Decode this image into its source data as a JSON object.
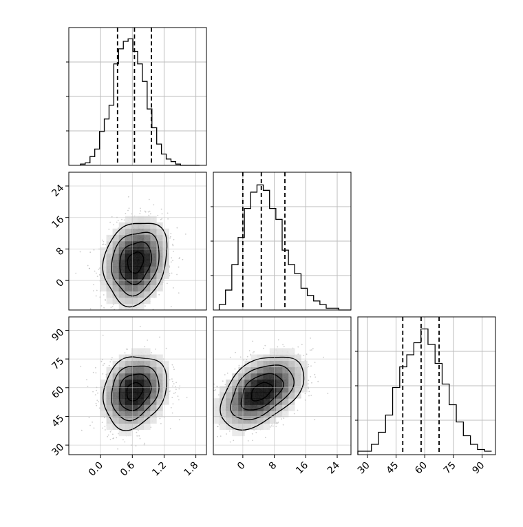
{
  "chart_data": {
    "type": "corner",
    "title": "",
    "grid": true,
    "variables": [
      {
        "ticks": [
          "0.0",
          "0.6",
          "1.2",
          "1.8"
        ],
        "tick_values": [
          0.0,
          0.6,
          1.2,
          1.8
        ],
        "range": [
          -0.6,
          2.0
        ]
      },
      {
        "ticks": [
          "0",
          "8",
          "16",
          "24"
        ],
        "tick_values": [
          0,
          8,
          16,
          24
        ],
        "range": [
          -7.5,
          27.5
        ]
      },
      {
        "ticks": [
          "30",
          "45",
          "60",
          "75",
          "90"
        ],
        "tick_values": [
          30,
          45,
          60,
          75,
          90
        ],
        "range": [
          25,
          97
        ]
      }
    ],
    "histograms": [
      {
        "variable": 0,
        "quantile_lines": [
          0.32,
          0.64,
          0.96
        ],
        "bin_edges": [
          -0.38,
          -0.29,
          -0.2,
          -0.11,
          -0.02,
          0.07,
          0.16,
          0.25,
          0.34,
          0.43,
          0.52,
          0.61,
          0.7,
          0.79,
          0.88,
          0.97,
          1.06,
          1.15,
          1.24,
          1.33,
          1.42,
          1.51,
          1.6,
          1.69,
          1.78,
          1.87
        ],
        "counts": [
          1,
          2,
          7,
          13,
          27,
          37,
          48,
          81,
          93,
          99,
          101,
          91,
          81,
          67,
          45,
          30,
          17,
          9,
          5,
          3,
          1,
          0,
          0,
          0,
          0
        ],
        "ylim": [
          0,
          110
        ]
      },
      {
        "variable": 1,
        "quantile_lines": [
          0.0,
          4.7,
          10.7
        ],
        "bin_edges": [
          -6.0,
          -4.4,
          -2.8,
          -1.2,
          0.4,
          2.0,
          3.6,
          5.2,
          6.8,
          8.4,
          10.0,
          11.6,
          13.2,
          14.8,
          16.4,
          18.0,
          19.6,
          21.2,
          22.8,
          24.4,
          26.0,
          27.5
        ],
        "counts": [
          3,
          11,
          25,
          40,
          56,
          65,
          69,
          66,
          56,
          50,
          33,
          25,
          20,
          12,
          8,
          5,
          3,
          1,
          1,
          0,
          0
        ],
        "ylim": [
          0,
          76
        ]
      },
      {
        "variable": 2,
        "quantile_lines": [
          48.5,
          58.1,
          67.5
        ],
        "bin_edges": [
          25.0,
          28.4,
          32.1,
          35.8,
          39.5,
          43.2,
          46.9,
          50.6,
          54.3,
          58.0,
          61.7,
          65.4,
          69.1,
          72.8,
          76.5,
          80.2,
          83.9,
          87.6,
          91.3,
          95.0
        ],
        "counts": [
          2,
          2,
          6,
          13,
          23,
          39,
          51,
          58,
          65,
          73,
          64,
          53,
          41,
          29,
          19,
          11,
          6,
          3,
          2
        ],
        "ylim": [
          0,
          80
        ]
      }
    ],
    "scatter_panels": [
      {
        "x_variable": 0,
        "y_variable": 1,
        "center": [
          0.66,
          4.6
        ],
        "sd": [
          0.3,
          5.3
        ],
        "correlation": 0.18,
        "contour_levels_sigma": [
          0.5,
          1.0,
          1.5,
          2.0
        ]
      },
      {
        "x_variable": 0,
        "y_variable": 2,
        "center": [
          0.64,
          58.0
        ],
        "sd": [
          0.3,
          9.5
        ],
        "correlation": 0.2,
        "contour_levels_sigma": [
          0.5,
          1.0,
          1.5,
          2.0
        ]
      },
      {
        "x_variable": 1,
        "y_variable": 2,
        "center": [
          4.7,
          58.0
        ],
        "sd": [
          5.3,
          9.5
        ],
        "correlation": 0.45,
        "contour_levels_sigma": [
          0.5,
          1.0,
          1.5,
          2.0
        ]
      }
    ]
  }
}
